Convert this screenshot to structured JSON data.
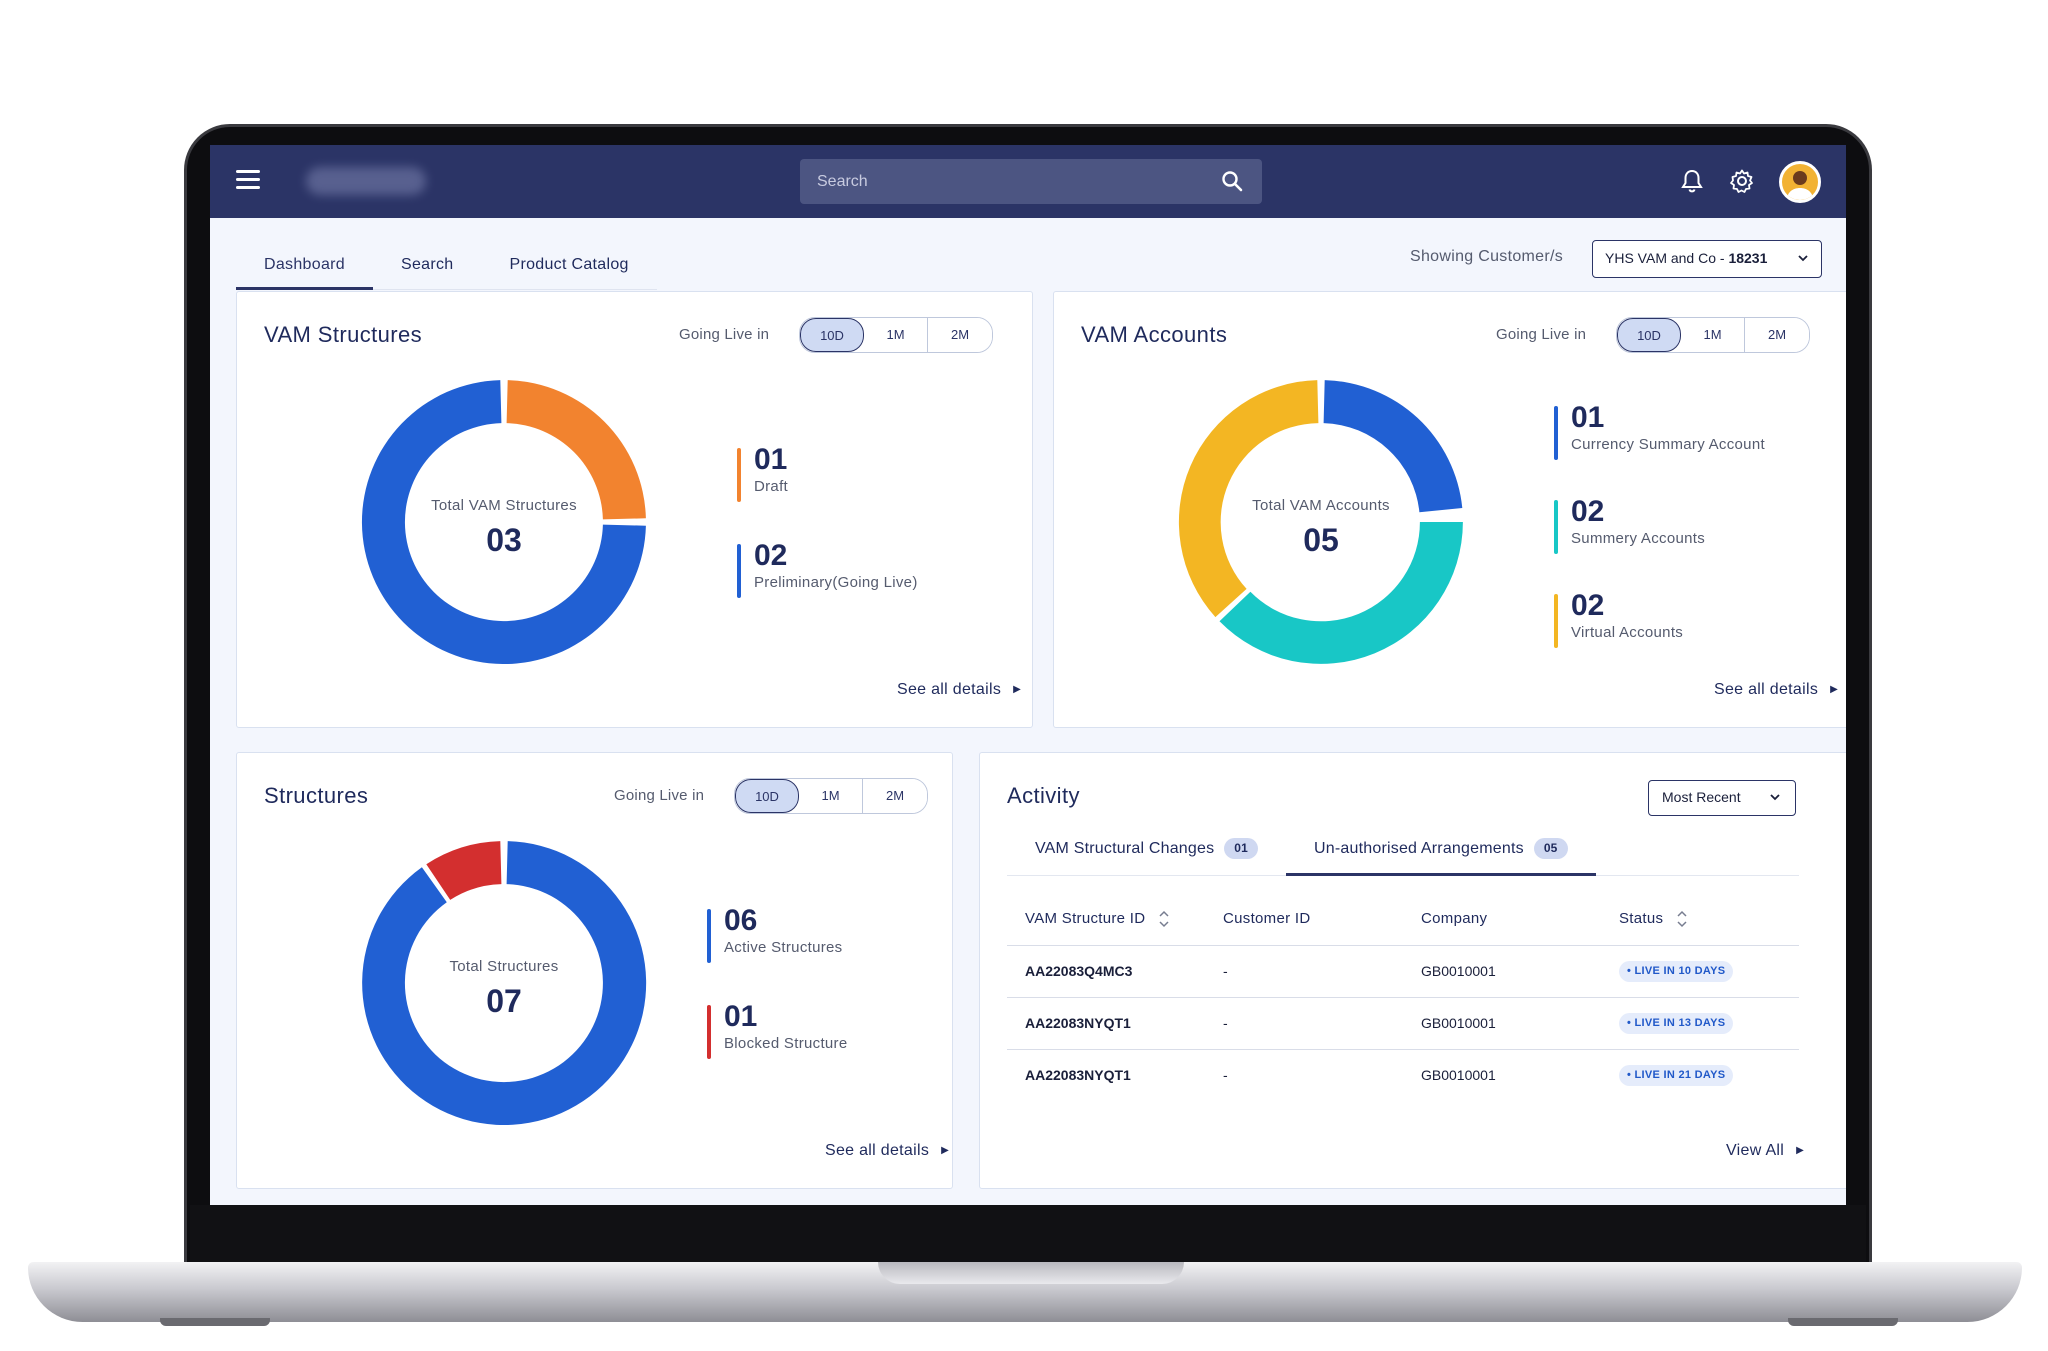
{
  "app": {
    "search_placeholder": "Search"
  },
  "tabs": [
    {
      "label": "Dashboard"
    },
    {
      "label": "Search"
    },
    {
      "label": "Product Catalog"
    }
  ],
  "customer_filter": {
    "label": "Showing Customer/s",
    "value_prefix": "YHS VAM and Co - ",
    "value_id": "18231"
  },
  "range_options": [
    "10D",
    "1M",
    "2M"
  ],
  "vam_structures": {
    "title": "VAM Structures",
    "going_live_label": "Going Live in",
    "selected_range": "10D",
    "center_label": "Total VAM Structures",
    "total": "03",
    "legend": [
      {
        "value": "01",
        "label": "Draft",
        "color": "#f2832f"
      },
      {
        "value": "02",
        "label": "Preliminary(Going Live)",
        "color": "#2160d3"
      }
    ],
    "see_all": "See all details"
  },
  "vam_accounts": {
    "title": "VAM Accounts",
    "going_live_label": "Going Live in",
    "selected_range": "10D",
    "center_label": "Total VAM Accounts",
    "total": "05",
    "legend": [
      {
        "value": "01",
        "label": "Currency Summary Account",
        "color": "#2160d3"
      },
      {
        "value": "02",
        "label": "Summery Accounts",
        "color": "#18c7c6"
      },
      {
        "value": "02",
        "label": "Virtual Accounts",
        "color": "#f3b623"
      }
    ],
    "see_all": "See all details"
  },
  "structures": {
    "title": "Structures",
    "going_live_label": "Going Live in",
    "selected_range": "10D",
    "center_label": "Total Structures",
    "total": "07",
    "legend": [
      {
        "value": "06",
        "label": "Active Structures",
        "color": "#2160d3"
      },
      {
        "value": "01",
        "label": "Blocked Structure",
        "color": "#d32f2f"
      }
    ],
    "see_all": "See all details"
  },
  "activity": {
    "title": "Activity",
    "sort": "Most Recent",
    "tabs": [
      {
        "label": "VAM Structural Changes",
        "count": "01"
      },
      {
        "label": "Un-authorised Arrangements",
        "count": "05"
      }
    ],
    "columns": [
      "VAM Structure ID",
      "Customer ID",
      "Company",
      "Status"
    ],
    "rows": [
      {
        "id": "AA22083Q4MC3",
        "customer": "-",
        "company": "GB0010001",
        "status": "• LIVE IN 10 DAYS"
      },
      {
        "id": "AA22083NYQT1",
        "customer": "-",
        "company": "GB0010001",
        "status": "• LIVE IN 13 DAYS"
      },
      {
        "id": "AA22083NYQT1",
        "customer": "-",
        "company": "GB0010001",
        "status": "• LIVE IN 21 DAYS"
      }
    ],
    "view_all": "View All"
  }
}
